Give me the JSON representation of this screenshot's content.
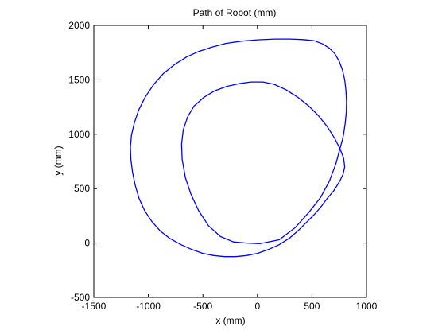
{
  "chart_data": {
    "type": "line",
    "title": "Path of Robot (mm)",
    "xlabel": "x (mm)",
    "ylabel": "y (mm)",
    "xlim": [
      -1500,
      1000
    ],
    "ylim": [
      -500,
      2000
    ],
    "xticks": [
      -1500,
      -1000,
      -500,
      0,
      500,
      1000
    ],
    "yticks": [
      -500,
      0,
      500,
      1000,
      1500,
      2000
    ],
    "xtick_labels": [
      "-1500",
      "-1000",
      "-500",
      "0",
      "500",
      "1000"
    ],
    "ytick_labels": [
      "-500",
      "0",
      "500",
      "1000",
      "1500",
      "2000"
    ],
    "grid": false,
    "line_color": "#0000ff",
    "series": [
      {
        "x": [
          50,
          200,
          345,
          470,
          580,
          660,
          720,
          760,
          780,
          790,
          805,
          815,
          817,
          812,
          800,
          780,
          750,
          710,
          660,
          600,
          520,
          420,
          300,
          160,
          0,
          -150,
          -290,
          -420,
          -540,
          -650,
          -760,
          -860,
          -950,
          -1030,
          -1090,
          -1130,
          -1155,
          -1165,
          -1160,
          -1145,
          -1120,
          -1085,
          -1035,
          -970,
          -890,
          -800,
          -700,
          -600,
          -500,
          -400,
          -300,
          -200,
          -100,
          0,
          100,
          200,
          300,
          380,
          450,
          520,
          580,
          640,
          700,
          750,
          785,
          800,
          790,
          760,
          710,
          640,
          560,
          470,
          370,
          260,
          150,
          50,
          -60,
          -170,
          -280,
          -390,
          -490,
          -580,
          -640,
          -680,
          -695,
          -690,
          -660,
          -610,
          -540,
          -450,
          -340,
          -220,
          -100,
          20,
          50
        ],
        "y": [
          0,
          30,
          140,
          280,
          420,
          570,
          730,
          880,
          950,
          1000,
          1100,
          1200,
          1300,
          1400,
          1500,
          1590,
          1670,
          1740,
          1790,
          1830,
          1860,
          1870,
          1875,
          1875,
          1868,
          1855,
          1835,
          1800,
          1760,
          1710,
          1640,
          1560,
          1460,
          1340,
          1220,
          1100,
          990,
          880,
          770,
          650,
          530,
          410,
          300,
          200,
          110,
          40,
          -15,
          -60,
          -95,
          -115,
          -125,
          -125,
          -115,
          -95,
          -60,
          -15,
          50,
          120,
          190,
          260,
          330,
          410,
          480,
          560,
          630,
          700,
          780,
          860,
          960,
          1070,
          1170,
          1260,
          1340,
          1410,
          1460,
          1480,
          1480,
          1465,
          1440,
          1400,
          1340,
          1260,
          1160,
          1040,
          910,
          770,
          600,
          450,
          300,
          160,
          60,
          10,
          0,
          -5,
          0
        ]
      }
    ]
  }
}
